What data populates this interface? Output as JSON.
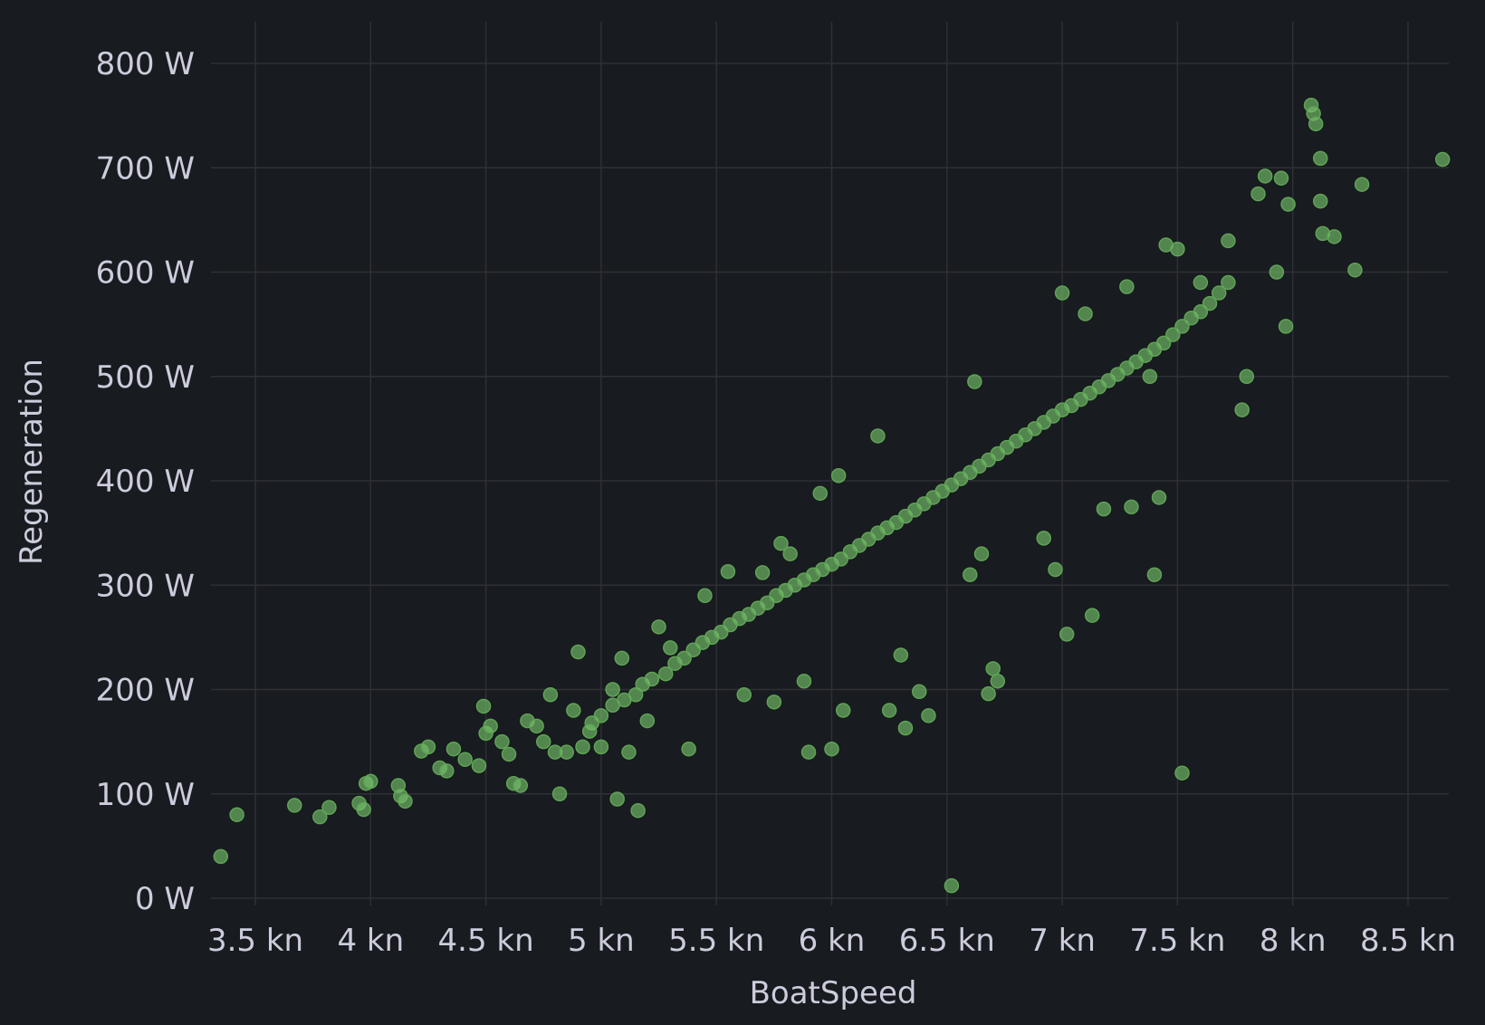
{
  "chart_data": {
    "type": "scatter",
    "xlabel": "BoatSpeed",
    "ylabel": "Regeneration",
    "xlim": [
      3.32,
      8.65
    ],
    "ylim": [
      0,
      800
    ],
    "x_ticks": [
      3.5,
      4,
      4.5,
      5,
      5.5,
      6,
      6.5,
      7,
      7.5,
      8,
      8.5
    ],
    "x_tick_labels": [
      "3.5 kn",
      "4 kn",
      "4.5 kn",
      "5 kn",
      "5.5 kn",
      "6 kn",
      "6.5 kn",
      "7 kn",
      "7.5 kn",
      "8 kn",
      "8.5 kn"
    ],
    "y_ticks": [
      0,
      100,
      200,
      300,
      400,
      500,
      600,
      700,
      800
    ],
    "y_tick_labels": [
      "0 W",
      "100 W",
      "200 W",
      "300 W",
      "400 W",
      "500 W",
      "600 W",
      "700 W",
      "800 W"
    ],
    "grid": true,
    "point_color": "#73bf69",
    "series": [
      {
        "points": [
          [
            3.35,
            40
          ],
          [
            3.42,
            80
          ],
          [
            3.67,
            89
          ],
          [
            3.78,
            78
          ],
          [
            3.82,
            87
          ],
          [
            3.95,
            91
          ],
          [
            3.97,
            85
          ],
          [
            3.98,
            110
          ],
          [
            4.0,
            112
          ],
          [
            4.12,
            108
          ],
          [
            4.13,
            98
          ],
          [
            4.15,
            93
          ],
          [
            4.22,
            141
          ],
          [
            4.25,
            145
          ],
          [
            4.3,
            125
          ],
          [
            4.33,
            122
          ],
          [
            4.36,
            143
          ],
          [
            4.41,
            133
          ],
          [
            4.47,
            127
          ],
          [
            4.49,
            184
          ],
          [
            4.5,
            158
          ],
          [
            4.52,
            165
          ],
          [
            4.57,
            150
          ],
          [
            4.6,
            138
          ],
          [
            4.62,
            110
          ],
          [
            4.65,
            108
          ],
          [
            4.68,
            170
          ],
          [
            4.72,
            165
          ],
          [
            4.75,
            150
          ],
          [
            4.78,
            195
          ],
          [
            4.8,
            140
          ],
          [
            4.82,
            100
          ],
          [
            4.85,
            140
          ],
          [
            4.88,
            180
          ],
          [
            4.9,
            236
          ],
          [
            4.92,
            145
          ],
          [
            4.96,
            168
          ],
          [
            5.0,
            145
          ],
          [
            5.05,
            200
          ],
          [
            5.07,
            95
          ],
          [
            5.09,
            230
          ],
          [
            5.12,
            140
          ],
          [
            5.16,
            84
          ],
          [
            5.2,
            170
          ],
          [
            5.25,
            260
          ],
          [
            5.3,
            240
          ],
          [
            5.38,
            143
          ],
          [
            5.45,
            290
          ],
          [
            5.55,
            313
          ],
          [
            5.62,
            195
          ],
          [
            5.7,
            312
          ],
          [
            5.75,
            188
          ],
          [
            5.78,
            340
          ],
          [
            5.82,
            330
          ],
          [
            5.88,
            208
          ],
          [
            5.9,
            140
          ],
          [
            5.95,
            388
          ],
          [
            6.0,
            143
          ],
          [
            6.03,
            405
          ],
          [
            6.05,
            180
          ],
          [
            6.2,
            443
          ],
          [
            6.25,
            180
          ],
          [
            6.3,
            233
          ],
          [
            6.32,
            163
          ],
          [
            6.38,
            198
          ],
          [
            6.42,
            175
          ],
          [
            6.52,
            12
          ],
          [
            6.6,
            310
          ],
          [
            6.65,
            330
          ],
          [
            6.68,
            196
          ],
          [
            6.7,
            220
          ],
          [
            6.72,
            208
          ],
          [
            6.62,
            495
          ],
          [
            6.92,
            345
          ],
          [
            6.97,
            315
          ],
          [
            7.0,
            580
          ],
          [
            7.02,
            253
          ],
          [
            7.1,
            560
          ],
          [
            7.13,
            271
          ],
          [
            7.18,
            373
          ],
          [
            7.28,
            586
          ],
          [
            7.3,
            375
          ],
          [
            7.38,
            500
          ],
          [
            7.4,
            310
          ],
          [
            7.42,
            384
          ],
          [
            7.45,
            626
          ],
          [
            7.5,
            622
          ],
          [
            7.52,
            120
          ],
          [
            7.6,
            590
          ],
          [
            7.72,
            630
          ],
          [
            7.78,
            468
          ],
          [
            7.8,
            500
          ],
          [
            7.85,
            675
          ],
          [
            7.88,
            692
          ],
          [
            7.93,
            600
          ],
          [
            7.95,
            690
          ],
          [
            7.97,
            548
          ],
          [
            7.98,
            665
          ],
          [
            8.08,
            760
          ],
          [
            8.09,
            752
          ],
          [
            8.1,
            742
          ],
          [
            8.12,
            709
          ],
          [
            8.12,
            668
          ],
          [
            8.13,
            637
          ],
          [
            8.18,
            634
          ],
          [
            8.27,
            602
          ],
          [
            8.3,
            684
          ],
          [
            8.65,
            708
          ],
          [
            4.95,
            160
          ],
          [
            5.0,
            175
          ],
          [
            5.05,
            185
          ],
          [
            5.1,
            190
          ],
          [
            5.15,
            195
          ],
          [
            5.18,
            205
          ],
          [
            5.22,
            210
          ],
          [
            5.28,
            215
          ],
          [
            5.32,
            225
          ],
          [
            5.36,
            230
          ],
          [
            5.4,
            238
          ],
          [
            5.44,
            245
          ],
          [
            5.48,
            250
          ],
          [
            5.52,
            255
          ],
          [
            5.56,
            262
          ],
          [
            5.6,
            268
          ],
          [
            5.64,
            272
          ],
          [
            5.68,
            278
          ],
          [
            5.72,
            283
          ],
          [
            5.76,
            290
          ],
          [
            5.8,
            295
          ],
          [
            5.84,
            300
          ],
          [
            5.88,
            305
          ],
          [
            5.92,
            310
          ],
          [
            5.96,
            315
          ],
          [
            6.0,
            320
          ],
          [
            6.04,
            325
          ],
          [
            6.08,
            332
          ],
          [
            6.12,
            338
          ],
          [
            6.16,
            344
          ],
          [
            6.2,
            350
          ],
          [
            6.24,
            355
          ],
          [
            6.28,
            360
          ],
          [
            6.32,
            366
          ],
          [
            6.36,
            372
          ],
          [
            6.4,
            378
          ],
          [
            6.44,
            384
          ],
          [
            6.48,
            390
          ],
          [
            6.52,
            396
          ],
          [
            6.56,
            402
          ],
          [
            6.6,
            408
          ],
          [
            6.64,
            414
          ],
          [
            6.68,
            420
          ],
          [
            6.72,
            426
          ],
          [
            6.76,
            432
          ],
          [
            6.8,
            438
          ],
          [
            6.84,
            444
          ],
          [
            6.88,
            450
          ],
          [
            6.92,
            456
          ],
          [
            6.96,
            462
          ],
          [
            7.0,
            468
          ],
          [
            7.04,
            472
          ],
          [
            7.08,
            478
          ],
          [
            7.12,
            484
          ],
          [
            7.16,
            490
          ],
          [
            7.2,
            496
          ],
          [
            7.24,
            502
          ],
          [
            7.28,
            508
          ],
          [
            7.32,
            514
          ],
          [
            7.36,
            520
          ],
          [
            7.4,
            526
          ],
          [
            7.44,
            532
          ],
          [
            7.48,
            540
          ],
          [
            7.52,
            548
          ],
          [
            7.56,
            556
          ],
          [
            7.6,
            562
          ],
          [
            7.64,
            570
          ],
          [
            7.68,
            580
          ],
          [
            7.72,
            590
          ]
        ]
      }
    ]
  }
}
